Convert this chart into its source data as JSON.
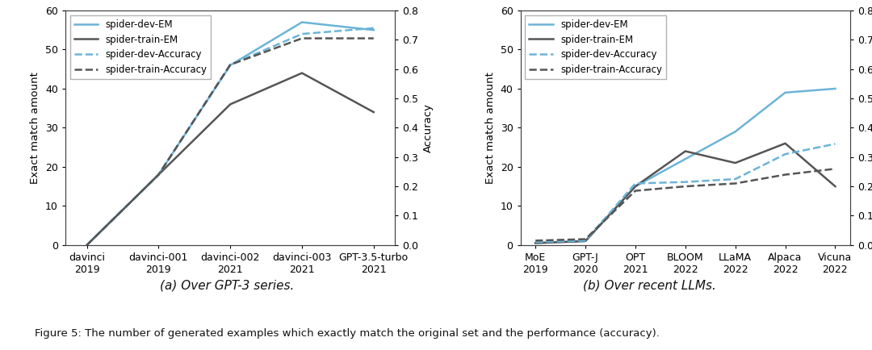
{
  "plot_a": {
    "x_labels": [
      "davinci\n2019",
      "davinci-001\n2019",
      "davinci-002\n2021",
      "davinci-003\n2021",
      "GPT-3.5-turbo\n2021"
    ],
    "spider_dev_EM": [
      0,
      18,
      46,
      57,
      55
    ],
    "spider_train_EM": [
      0,
      18,
      36,
      44,
      34
    ],
    "spider_dev_Acc": [
      0.0,
      0.24,
      0.615,
      0.72,
      0.74
    ],
    "spider_train_Acc": [
      0.0,
      0.24,
      0.615,
      0.705,
      0.705
    ],
    "ylim_left": [
      0,
      60
    ],
    "ylim_right": [
      0.0,
      0.8
    ],
    "title": "(a) Over GPT-3 series."
  },
  "plot_b": {
    "x_labels": [
      "MoE\n2019",
      "GPT-J\n2020",
      "OPT\n2021",
      "BLOOM\n2022",
      "LLaMA\n2022",
      "Alpaca\n2022",
      "Vicuna\n2022"
    ],
    "spider_dev_EM": [
      0.5,
      1.0,
      15,
      22,
      29,
      39,
      40
    ],
    "spider_train_EM": [
      0.5,
      1.0,
      15,
      24,
      21,
      26,
      15
    ],
    "spider_dev_Acc": [
      0.01,
      0.015,
      0.21,
      0.215,
      0.225,
      0.31,
      0.345
    ],
    "spider_train_Acc": [
      0.015,
      0.02,
      0.185,
      0.2,
      0.21,
      0.24,
      0.26
    ],
    "ylim_left": [
      0,
      60
    ],
    "ylim_right": [
      0.0,
      0.8
    ],
    "title": "(b) Over recent LLMs."
  },
  "legend_labels": [
    "spider-dev-EM",
    "spider-train-EM",
    "spider-dev-Accuracy",
    "spider-train-Accuracy"
  ],
  "ylabel_left": "Exact match amount",
  "ylabel_right": "Accuracy",
  "color_blue": "#6CB4D8",
  "color_gray": "#555555",
  "figure_caption": "Figure 5: The number of generated examples which exactly match the original set and the performance (accuracy).",
  "bg_color": "#ffffff"
}
